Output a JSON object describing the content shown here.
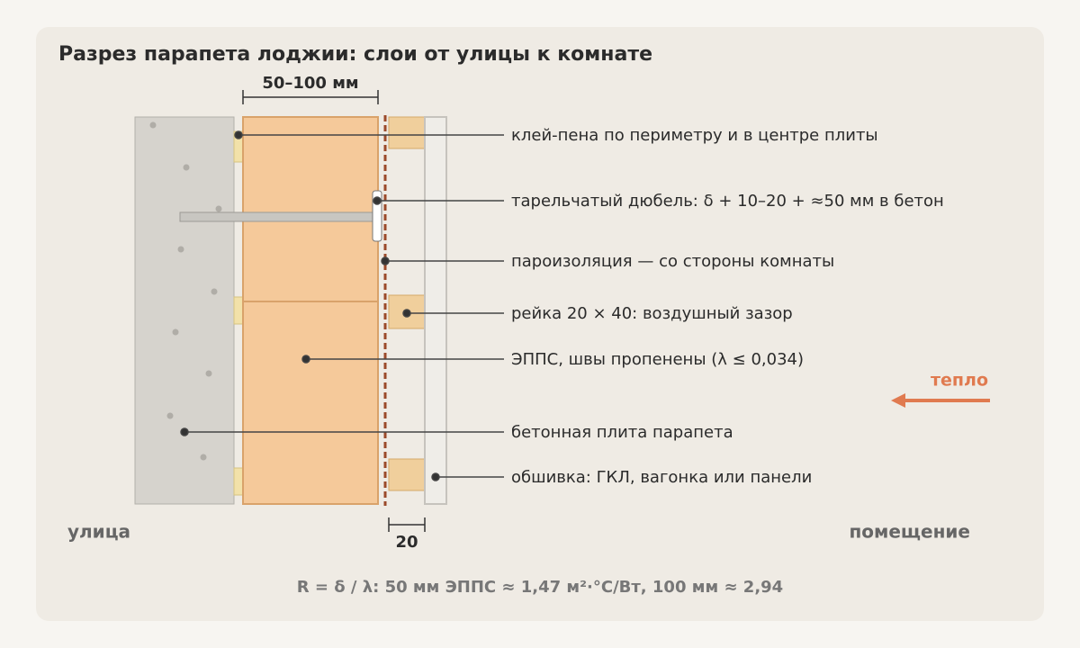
{
  "title": "Разрез парапета лоджии: слои от улицы к комнате",
  "dimensions": {
    "insulation": "50–100 мм",
    "gap": "20"
  },
  "callouts": [
    {
      "label": "клей-пена по периметру и в центре плиты"
    },
    {
      "label": "тарельчатый дюбель: δ + 10–20 + ≈50 мм в бетон"
    },
    {
      "label": "пароизоляция — со стороны комнаты"
    },
    {
      "label": "рейка 20 × 40: воздушный зазор"
    },
    {
      "label": "ЭППС, швы пропенены (λ ≤ 0,034)"
    },
    {
      "label": "бетонная плита парапета"
    },
    {
      "label": "обшивка: ГКЛ, вагонка или панели"
    }
  ],
  "sides": {
    "outside": "улица",
    "inside": "помещение"
  },
  "heat_flow": "тепло",
  "formula": "R = δ / λ: 50 мм ЭППС ≈ 1,47 м²·°C/Вт, 100 мм ≈ 2,94"
}
